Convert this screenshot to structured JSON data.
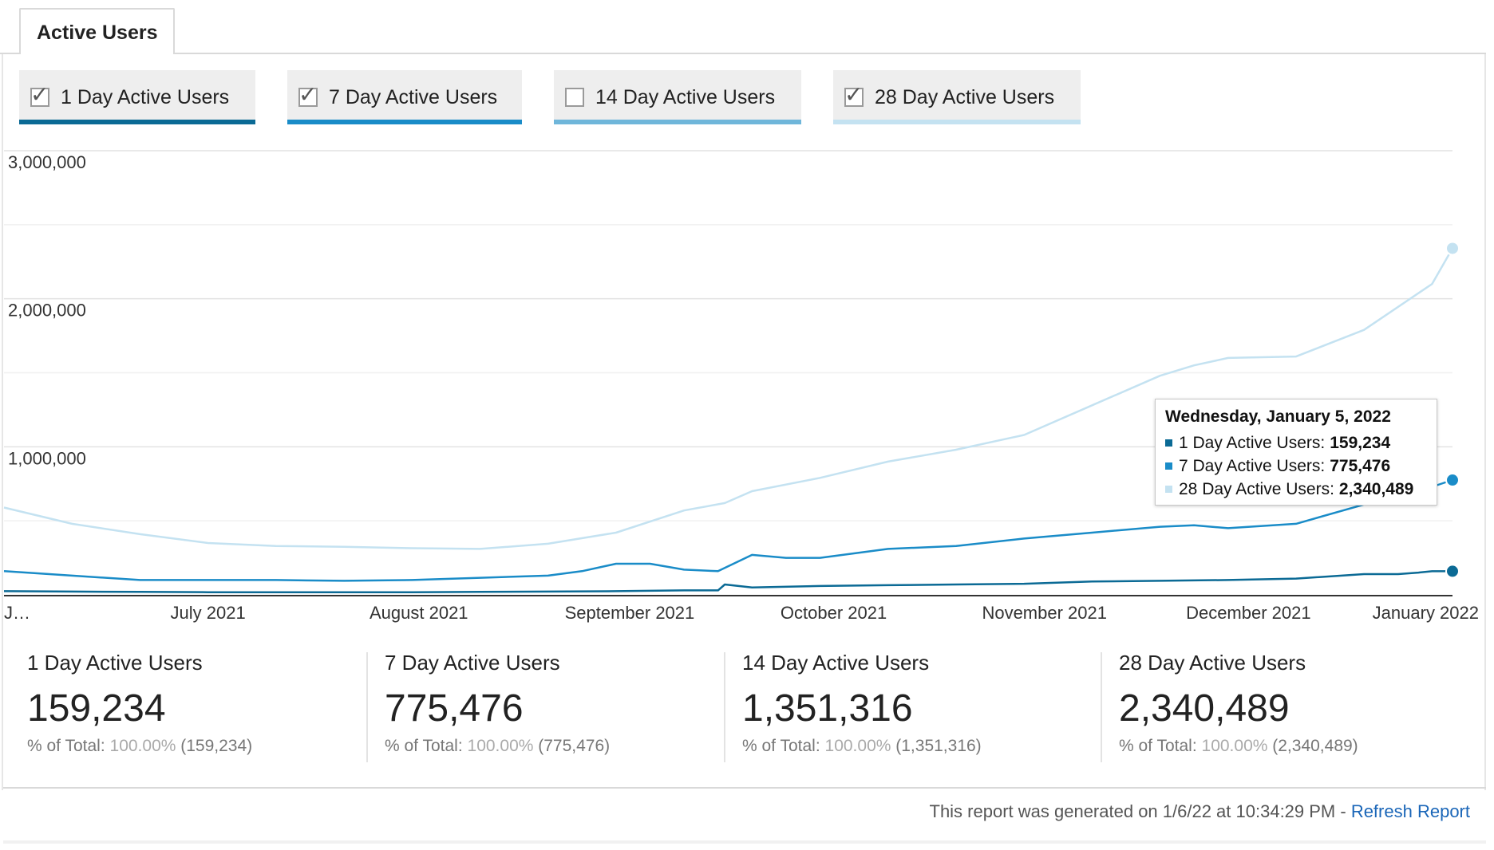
{
  "tab": {
    "label": "Active Users"
  },
  "metrics": [
    {
      "label": "1 Day Active Users",
      "checked": true,
      "color": "#0b6a95"
    },
    {
      "label": "7 Day Active Users",
      "checked": true,
      "color": "#1a8cc8"
    },
    {
      "label": "14 Day Active Users",
      "checked": false,
      "color": "#6fb6da"
    },
    {
      "label": "28 Day Active Users",
      "checked": true,
      "color": "#c4e2f1"
    }
  ],
  "chart_data": {
    "type": "line",
    "ylim": [
      0,
      3000000
    ],
    "yticks": [
      {
        "value": 1000000,
        "label": "1,000,000"
      },
      {
        "value": 2000000,
        "label": "2,000,000"
      },
      {
        "value": 3000000,
        "label": "3,000,000"
      }
    ],
    "x_domain": [
      0,
      213
    ],
    "xticks": [
      {
        "day": 0,
        "label": "J…"
      },
      {
        "day": 30,
        "label": "July 2021"
      },
      {
        "day": 61,
        "label": "August 2021"
      },
      {
        "day": 92,
        "label": "September 2021"
      },
      {
        "day": 122,
        "label": "October 2021"
      },
      {
        "day": 153,
        "label": "November 2021"
      },
      {
        "day": 183,
        "label": "December 2021"
      },
      {
        "day": 214,
        "label": "January 2022"
      }
    ],
    "series": [
      {
        "name": "28 Day Active Users",
        "color": "#c4e2f1",
        "x": [
          0,
          10,
          20,
          30,
          40,
          50,
          60,
          70,
          80,
          90,
          100,
          106,
          110,
          120,
          130,
          140,
          150,
          160,
          170,
          175,
          180,
          190,
          200,
          210,
          213
        ],
        "y": [
          590000,
          480000,
          410000,
          350000,
          330000,
          325000,
          315000,
          310000,
          345000,
          420000,
          570000,
          620000,
          700000,
          790000,
          900000,
          980000,
          1080000,
          1280000,
          1480000,
          1550000,
          1600000,
          1610000,
          1790000,
          2100000,
          2340489
        ]
      },
      {
        "name": "7 Day Active Users",
        "color": "#1a8cc8",
        "x": [
          0,
          10,
          20,
          30,
          40,
          50,
          60,
          70,
          80,
          85,
          90,
          95,
          100,
          105,
          110,
          115,
          120,
          130,
          140,
          150,
          160,
          170,
          175,
          180,
          190,
          200,
          210,
          213
        ],
        "y": [
          160000,
          130000,
          100000,
          100000,
          100000,
          95000,
          100000,
          115000,
          130000,
          160000,
          210000,
          210000,
          170000,
          160000,
          270000,
          250000,
          250000,
          310000,
          330000,
          380000,
          420000,
          460000,
          470000,
          450000,
          480000,
          610000,
          730000,
          775476
        ]
      },
      {
        "name": "1 Day Active Users",
        "color": "#0b6a95",
        "x": [
          0,
          10,
          20,
          30,
          40,
          50,
          60,
          70,
          80,
          90,
          100,
          105,
          106,
          110,
          120,
          130,
          140,
          150,
          160,
          170,
          180,
          190,
          200,
          205,
          208,
          210,
          213
        ],
        "y": [
          25000,
          22000,
          20000,
          18000,
          18000,
          17000,
          18000,
          20000,
          22000,
          25000,
          30000,
          30000,
          70000,
          50000,
          60000,
          65000,
          70000,
          75000,
          90000,
          95000,
          100000,
          110000,
          140000,
          140000,
          150000,
          159234,
          159234
        ]
      }
    ],
    "highlight": {
      "date": "Wednesday, January 5, 2022",
      "rows": [
        {
          "name": "1 Day Active Users",
          "value": "159,234",
          "color": "#0b6a95"
        },
        {
          "name": "7 Day Active Users",
          "value": "775,476",
          "color": "#1a8cc8"
        },
        {
          "name": "28 Day Active Users",
          "value": "2,340,489",
          "color": "#c4e2f1"
        }
      ]
    }
  },
  "summary": [
    {
      "label": "1 Day Active Users",
      "value": "159,234",
      "pct_prefix": "% of Total: ",
      "pct_value": "100.00%",
      "pct_total": " (159,234)"
    },
    {
      "label": "7 Day Active Users",
      "value": "775,476",
      "pct_prefix": "% of Total: ",
      "pct_value": "100.00%",
      "pct_total": " (775,476)"
    },
    {
      "label": "14 Day Active Users",
      "value": "1,351,316",
      "pct_prefix": "% of Total: ",
      "pct_value": "100.00%",
      "pct_total": " (1,351,316)"
    },
    {
      "label": "28 Day Active Users",
      "value": "2,340,489",
      "pct_prefix": "% of Total: ",
      "pct_value": "100.00%",
      "pct_total": " (2,340,489)"
    }
  ],
  "footer": {
    "text": "This report was generated on 1/6/22 at 10:34:29 PM - ",
    "link": "Refresh Report"
  }
}
